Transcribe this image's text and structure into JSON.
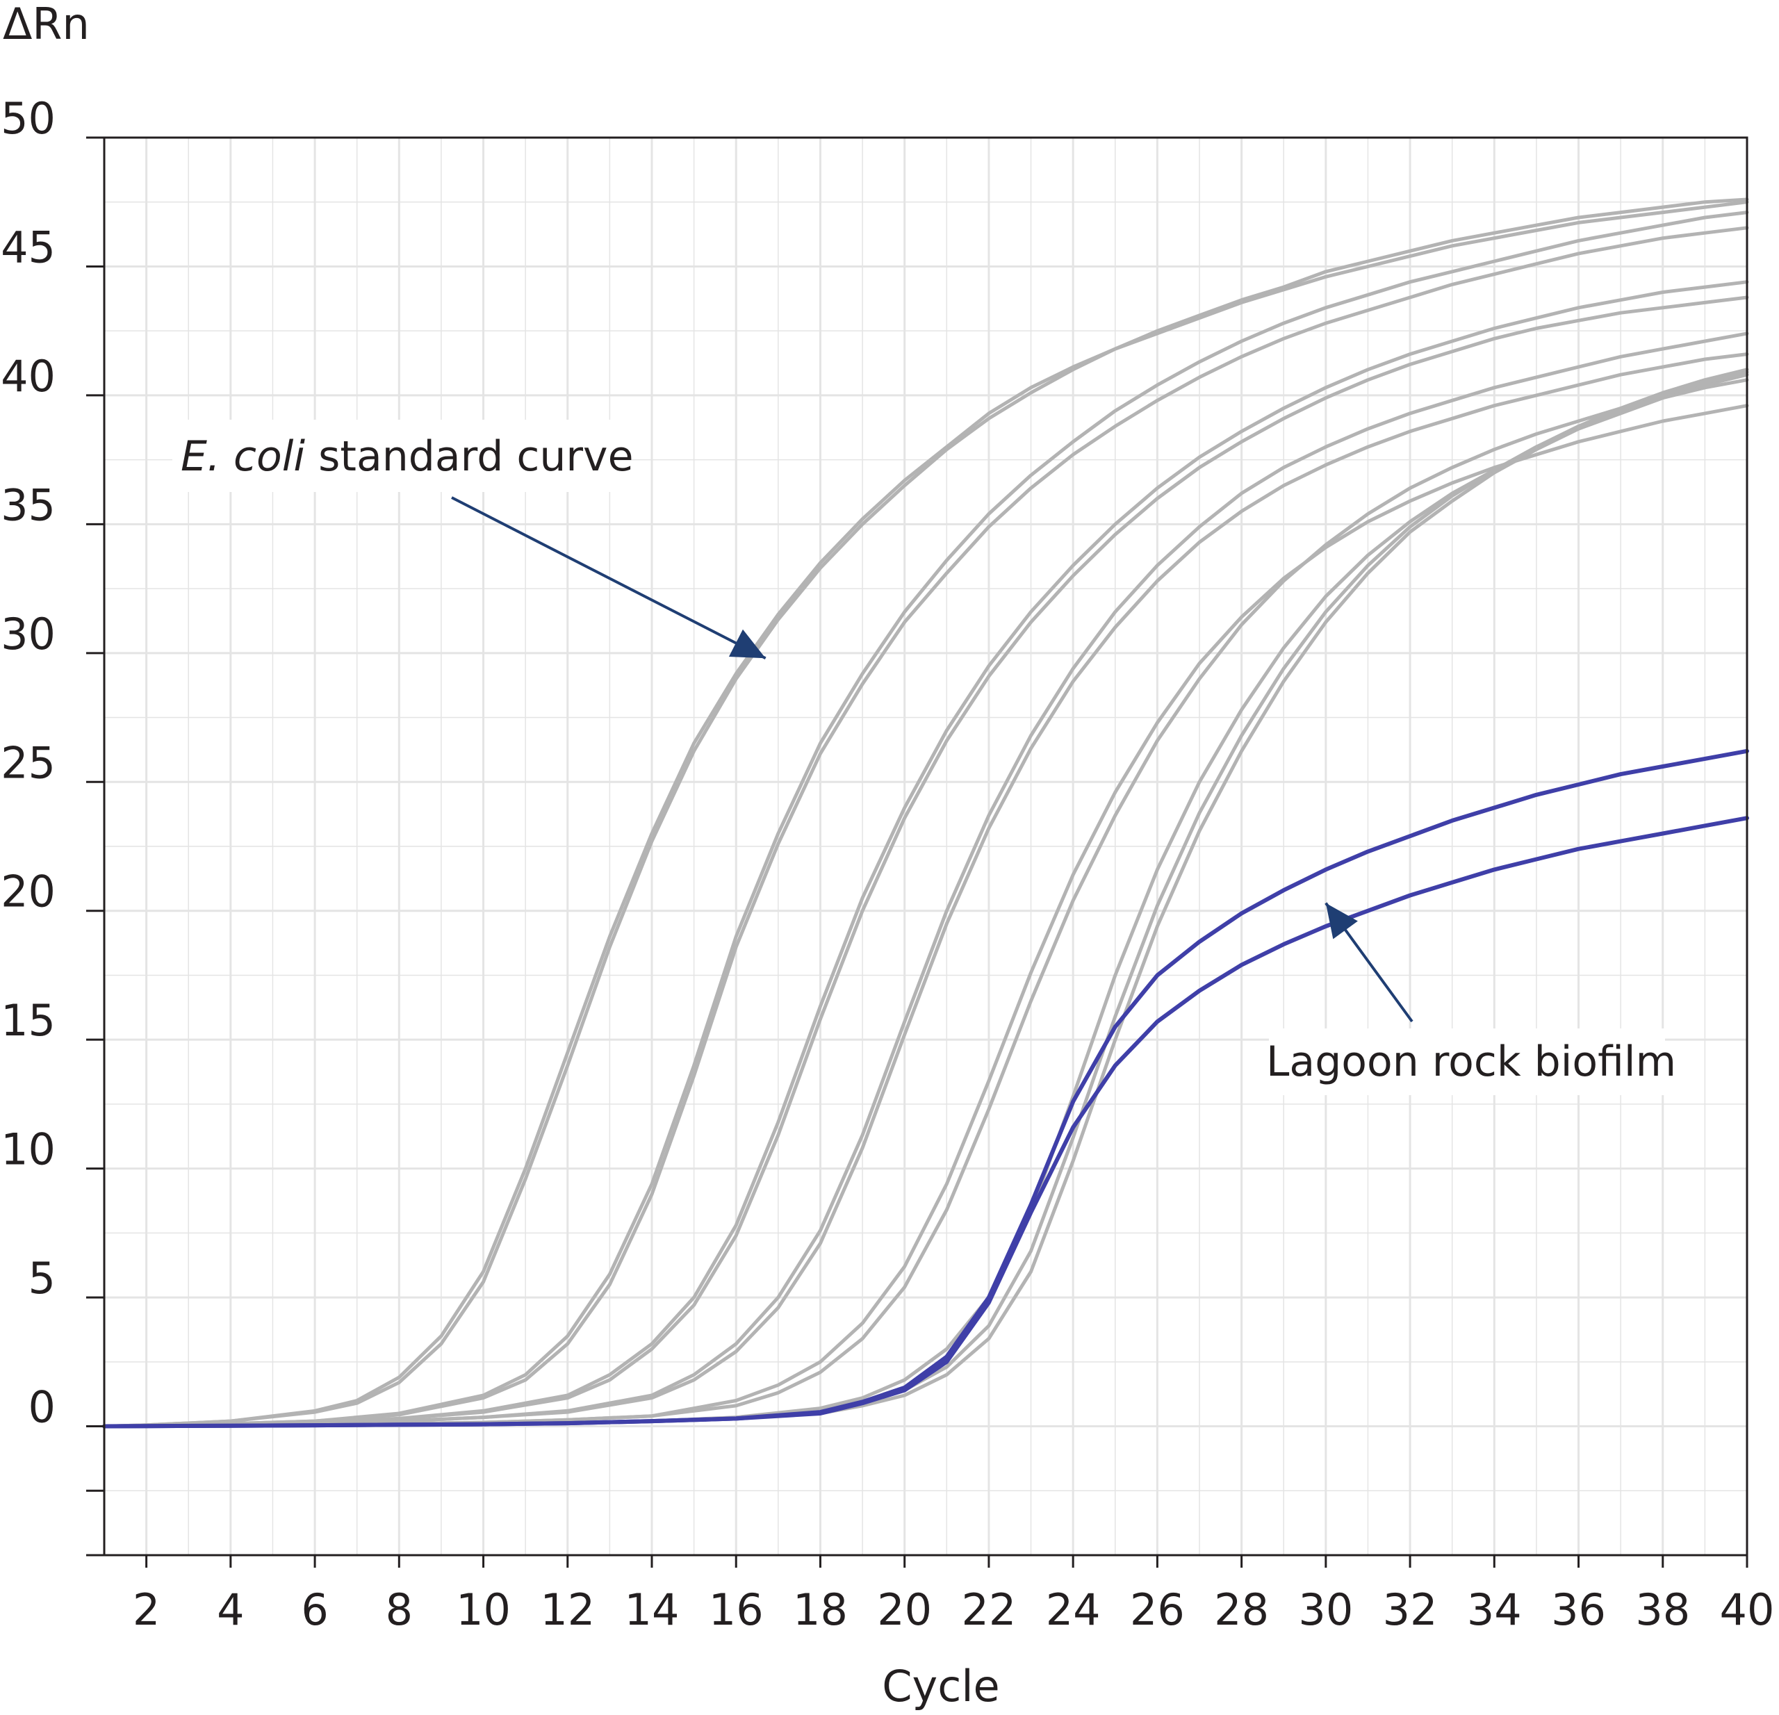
{
  "chart_data": {
    "type": "line",
    "title": "",
    "xlabel": "Cycle",
    "ylabel": "ΔRn",
    "xlim": [
      1,
      40
    ],
    "ylim": [
      -5,
      50
    ],
    "grid": true,
    "x_ticks": [
      2,
      4,
      6,
      8,
      10,
      12,
      14,
      16,
      18,
      20,
      22,
      24,
      26,
      28,
      30,
      32,
      34,
      36,
      38,
      40
    ],
    "y_ticks": [
      0,
      5,
      10,
      15,
      20,
      25,
      30,
      35,
      40,
      45,
      50
    ],
    "colors": {
      "standard": "#b3b3b3",
      "biofilm": "#3f3fa8",
      "arrow": "#1f3e73",
      "grid": "#e4e4e4",
      "axis": "#231f20"
    },
    "annotations": [
      {
        "italic": "E. coli",
        "text": " standard curve",
        "target": [
          16.7,
          29.8
        ]
      },
      {
        "text": "Lagoon rock biofilm",
        "target": [
          30,
          20.3
        ]
      }
    ],
    "series": [
      {
        "group": "standard",
        "x": [
          1,
          2,
          4,
          6,
          7,
          8,
          9,
          10,
          11,
          12,
          13,
          14,
          15,
          16,
          17,
          18,
          19,
          20,
          21,
          22,
          23,
          24,
          25,
          26,
          27,
          28,
          29,
          30,
          31,
          32,
          33,
          34,
          35,
          36,
          37,
          38,
          39,
          40
        ],
        "y": [
          0,
          0.05,
          0.2,
          0.6,
          1.0,
          1.9,
          3.5,
          6.0,
          10.0,
          14.5,
          19.0,
          23.0,
          26.5,
          29.2,
          31.5,
          33.5,
          35.2,
          36.7,
          38.0,
          39.3,
          40.3,
          41.1,
          41.8,
          42.5,
          43.1,
          43.7,
          44.2,
          44.8,
          45.2,
          45.6,
          46.0,
          46.3,
          46.6,
          46.9,
          47.1,
          47.3,
          47.5,
          47.6
        ]
      },
      {
        "group": "standard",
        "x": [
          1,
          2,
          4,
          6,
          7,
          8,
          9,
          10,
          11,
          12,
          13,
          14,
          15,
          16,
          17,
          18,
          19,
          20,
          21,
          22,
          23,
          24,
          25,
          26,
          27,
          28,
          29,
          30,
          31,
          32,
          33,
          34,
          35,
          36,
          37,
          38,
          39,
          40
        ],
        "y": [
          0,
          0.05,
          0.2,
          0.55,
          0.9,
          1.7,
          3.2,
          5.6,
          9.6,
          14.0,
          18.6,
          22.7,
          26.2,
          29.0,
          31.3,
          33.3,
          35.0,
          36.5,
          37.9,
          39.1,
          40.1,
          41.0,
          41.8,
          42.4,
          43.0,
          43.6,
          44.1,
          44.6,
          45.0,
          45.4,
          45.8,
          46.1,
          46.4,
          46.7,
          46.9,
          47.1,
          47.3,
          47.5
        ]
      },
      {
        "group": "standard",
        "x": [
          1,
          2,
          4,
          6,
          8,
          10,
          11,
          12,
          13,
          14,
          15,
          16,
          17,
          18,
          19,
          20,
          21,
          22,
          23,
          24,
          25,
          26,
          27,
          28,
          29,
          30,
          31,
          32,
          33,
          34,
          35,
          36,
          37,
          38,
          39,
          40
        ],
        "y": [
          0,
          0.03,
          0.1,
          0.2,
          0.5,
          1.2,
          2.0,
          3.5,
          5.9,
          9.4,
          14.0,
          19.0,
          23.0,
          26.5,
          29.2,
          31.6,
          33.6,
          35.4,
          36.9,
          38.2,
          39.4,
          40.4,
          41.3,
          42.1,
          42.8,
          43.4,
          43.9,
          44.4,
          44.8,
          45.2,
          45.6,
          46.0,
          46.3,
          46.6,
          46.9,
          47.1
        ]
      },
      {
        "group": "standard",
        "x": [
          1,
          2,
          4,
          6,
          8,
          10,
          11,
          12,
          13,
          14,
          15,
          16,
          17,
          18,
          19,
          20,
          21,
          22,
          23,
          24,
          25,
          26,
          27,
          28,
          29,
          30,
          31,
          32,
          33,
          34,
          35,
          36,
          37,
          38,
          39,
          40
        ],
        "y": [
          0,
          0.03,
          0.1,
          0.2,
          0.45,
          1.1,
          1.8,
          3.2,
          5.5,
          9.0,
          13.6,
          18.6,
          22.6,
          26.1,
          28.8,
          31.2,
          33.1,
          34.9,
          36.4,
          37.7,
          38.8,
          39.8,
          40.7,
          41.5,
          42.2,
          42.8,
          43.3,
          43.8,
          44.3,
          44.7,
          45.1,
          45.5,
          45.8,
          46.1,
          46.3,
          46.5
        ]
      },
      {
        "group": "standard",
        "x": [
          1,
          2,
          4,
          6,
          8,
          10,
          12,
          13,
          14,
          15,
          16,
          17,
          18,
          19,
          20,
          21,
          22,
          23,
          24,
          25,
          26,
          27,
          28,
          29,
          30,
          31,
          32,
          33,
          34,
          35,
          36,
          37,
          38,
          39,
          40
        ],
        "y": [
          0,
          0.02,
          0.08,
          0.15,
          0.3,
          0.6,
          1.2,
          2.0,
          3.2,
          5.0,
          7.8,
          11.8,
          16.3,
          20.5,
          24.0,
          27.0,
          29.5,
          31.6,
          33.4,
          35.0,
          36.4,
          37.6,
          38.6,
          39.5,
          40.3,
          41.0,
          41.6,
          42.1,
          42.6,
          43.0,
          43.4,
          43.7,
          44.0,
          44.2,
          44.4
        ]
      },
      {
        "group": "standard",
        "x": [
          1,
          2,
          4,
          6,
          8,
          10,
          12,
          13,
          14,
          15,
          16,
          17,
          18,
          19,
          20,
          21,
          22,
          23,
          24,
          25,
          26,
          27,
          28,
          29,
          30,
          31,
          32,
          33,
          34,
          35,
          36,
          37,
          38,
          39,
          40
        ],
        "y": [
          0,
          0.02,
          0.08,
          0.15,
          0.3,
          0.55,
          1.1,
          1.8,
          3.0,
          4.7,
          7.4,
          11.3,
          15.8,
          20.0,
          23.6,
          26.6,
          29.1,
          31.2,
          33.0,
          34.6,
          36.0,
          37.2,
          38.2,
          39.1,
          39.9,
          40.6,
          41.2,
          41.7,
          42.2,
          42.6,
          42.9,
          43.2,
          43.4,
          43.6,
          43.8
        ]
      },
      {
        "group": "standard",
        "x": [
          1,
          2,
          4,
          6,
          8,
          10,
          12,
          14,
          15,
          16,
          17,
          18,
          19,
          20,
          21,
          22,
          23,
          24,
          25,
          26,
          27,
          28,
          29,
          30,
          31,
          32,
          33,
          34,
          35,
          36,
          37,
          38,
          39,
          40
        ],
        "y": [
          0,
          0.02,
          0.05,
          0.1,
          0.2,
          0.35,
          0.6,
          1.2,
          2.0,
          3.2,
          5.0,
          7.6,
          11.3,
          15.7,
          20.0,
          23.7,
          26.8,
          29.4,
          31.6,
          33.4,
          34.9,
          36.2,
          37.2,
          38.0,
          38.7,
          39.3,
          39.8,
          40.3,
          40.7,
          41.1,
          41.5,
          41.8,
          42.1,
          42.4
        ]
      },
      {
        "group": "standard",
        "x": [
          1,
          2,
          4,
          6,
          8,
          10,
          12,
          14,
          15,
          16,
          17,
          18,
          19,
          20,
          21,
          22,
          23,
          24,
          25,
          26,
          27,
          28,
          29,
          30,
          31,
          32,
          33,
          34,
          35,
          36,
          37,
          38,
          39,
          40
        ],
        "y": [
          0,
          0.02,
          0.05,
          0.1,
          0.2,
          0.35,
          0.55,
          1.1,
          1.8,
          2.9,
          4.6,
          7.1,
          10.8,
          15.2,
          19.5,
          23.2,
          26.3,
          28.9,
          31.0,
          32.8,
          34.3,
          35.5,
          36.5,
          37.3,
          38.0,
          38.6,
          39.1,
          39.6,
          40.0,
          40.4,
          40.8,
          41.1,
          41.4,
          41.6
        ]
      },
      {
        "group": "standard",
        "x": [
          1,
          2,
          4,
          6,
          8,
          10,
          12,
          14,
          16,
          17,
          18,
          19,
          20,
          21,
          22,
          23,
          24,
          25,
          26,
          27,
          28,
          29,
          30,
          31,
          32,
          33,
          34,
          35,
          36,
          37,
          38,
          39,
          40
        ],
        "y": [
          0,
          0.01,
          0.03,
          0.06,
          0.1,
          0.15,
          0.25,
          0.4,
          1.0,
          1.6,
          2.5,
          4.0,
          6.2,
          9.4,
          13.4,
          17.6,
          21.4,
          24.6,
          27.3,
          29.6,
          31.4,
          32.9,
          34.1,
          35.1,
          35.9,
          36.6,
          37.2,
          37.7,
          38.2,
          38.6,
          39.0,
          39.3,
          39.6
        ]
      },
      {
        "group": "standard",
        "x": [
          1,
          2,
          4,
          6,
          8,
          10,
          12,
          14,
          16,
          17,
          18,
          19,
          20,
          21,
          22,
          23,
          24,
          25,
          26,
          27,
          28,
          29,
          30,
          31,
          32,
          33,
          34,
          35,
          36,
          37,
          38,
          39,
          40
        ],
        "y": [
          0,
          0.01,
          0.03,
          0.06,
          0.1,
          0.15,
          0.25,
          0.4,
          0.8,
          1.3,
          2.1,
          3.4,
          5.4,
          8.4,
          12.3,
          16.5,
          20.4,
          23.7,
          26.6,
          29.0,
          31.1,
          32.8,
          34.2,
          35.4,
          36.4,
          37.2,
          37.9,
          38.5,
          39.0,
          39.5,
          39.9,
          40.3,
          40.6
        ]
      },
      {
        "group": "standard",
        "x": [
          1,
          2,
          4,
          6,
          8,
          10,
          12,
          14,
          16,
          18,
          19,
          20,
          21,
          22,
          23,
          24,
          25,
          26,
          27,
          28,
          29,
          30,
          31,
          32,
          33,
          34,
          35,
          36,
          37,
          38,
          39,
          40
        ],
        "y": [
          0,
          0.01,
          0.02,
          0.04,
          0.06,
          0.08,
          0.12,
          0.2,
          0.35,
          0.7,
          1.1,
          1.8,
          3.0,
          5.0,
          8.3,
          12.8,
          17.5,
          21.6,
          25.0,
          27.8,
          30.2,
          32.2,
          33.8,
          35.1,
          36.2,
          37.1,
          38.0,
          38.7,
          39.3,
          39.9,
          40.4,
          40.8
        ]
      },
      {
        "group": "standard",
        "x": [
          1,
          2,
          4,
          6,
          8,
          10,
          12,
          14,
          16,
          18,
          19,
          20,
          21,
          22,
          23,
          24,
          25,
          26,
          27,
          28,
          29,
          30,
          31,
          32,
          33,
          34,
          35,
          36,
          37,
          38,
          39,
          40
        ],
        "y": [
          0,
          0.01,
          0.02,
          0.04,
          0.06,
          0.08,
          0.12,
          0.2,
          0.3,
          0.55,
          0.9,
          1.4,
          2.3,
          3.9,
          6.8,
          11.2,
          15.9,
          20.2,
          23.8,
          26.8,
          29.4,
          31.6,
          33.4,
          34.9,
          36.1,
          37.1,
          38.0,
          38.8,
          39.5,
          40.1,
          40.6,
          41.0
        ]
      },
      {
        "group": "standard",
        "x": [
          1,
          2,
          4,
          6,
          8,
          10,
          12,
          14,
          16,
          18,
          19,
          20,
          21,
          22,
          23,
          24,
          25,
          26,
          27,
          28,
          29,
          30,
          31,
          32,
          33,
          34,
          35,
          36,
          37,
          38,
          39,
          40
        ],
        "y": [
          0,
          0.01,
          0.02,
          0.04,
          0.06,
          0.08,
          0.12,
          0.2,
          0.3,
          0.5,
          0.8,
          1.2,
          2.0,
          3.4,
          6.0,
          10.3,
          15.0,
          19.4,
          23.1,
          26.2,
          28.9,
          31.2,
          33.1,
          34.7,
          35.9,
          37.0,
          37.9,
          38.7,
          39.4,
          40.0,
          40.5,
          40.9
        ]
      },
      {
        "group": "biofilm",
        "x": [
          1,
          2,
          4,
          6,
          8,
          10,
          12,
          14,
          16,
          18,
          19,
          20,
          21,
          22,
          23,
          24,
          25,
          26,
          27,
          28,
          29,
          30,
          31,
          32,
          33,
          34,
          35,
          36,
          37,
          38,
          39,
          40
        ],
        "y": [
          0,
          0.01,
          0.02,
          0.04,
          0.06,
          0.08,
          0.12,
          0.2,
          0.3,
          0.55,
          0.95,
          1.5,
          2.7,
          5.0,
          8.6,
          12.6,
          15.5,
          17.5,
          18.8,
          19.9,
          20.8,
          21.6,
          22.3,
          22.9,
          23.5,
          24.0,
          24.5,
          24.9,
          25.3,
          25.6,
          25.9,
          26.2
        ]
      },
      {
        "group": "biofilm",
        "x": [
          1,
          2,
          4,
          6,
          8,
          10,
          12,
          14,
          16,
          18,
          19,
          20,
          21,
          22,
          23,
          24,
          25,
          26,
          27,
          28,
          29,
          30,
          31,
          32,
          33,
          34,
          35,
          36,
          37,
          38,
          39,
          40
        ],
        "y": [
          0,
          0.01,
          0.02,
          0.04,
          0.06,
          0.08,
          0.12,
          0.2,
          0.3,
          0.5,
          0.9,
          1.4,
          2.5,
          4.8,
          8.3,
          11.6,
          14.0,
          15.7,
          16.9,
          17.9,
          18.7,
          19.4,
          20.0,
          20.6,
          21.1,
          21.6,
          22.0,
          22.4,
          22.7,
          23.0,
          23.3,
          23.6
        ]
      }
    ]
  }
}
